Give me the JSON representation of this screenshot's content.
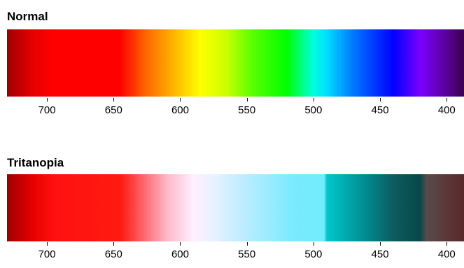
{
  "chart_data": [
    {
      "type": "spectrum-strip",
      "title": "Normal",
      "xlim": [
        730,
        387
      ],
      "ticks": [
        700,
        650,
        600,
        550,
        500,
        450,
        400
      ],
      "color_stops": [
        {
          "wavelength": 730,
          "color": "#a00000"
        },
        {
          "wavelength": 710,
          "color": "#e80000"
        },
        {
          "wavelength": 695,
          "color": "#ff0000"
        },
        {
          "wavelength": 645,
          "color": "#ff0000"
        },
        {
          "wavelength": 625,
          "color": "#ff6a00"
        },
        {
          "wavelength": 600,
          "color": "#ffc800"
        },
        {
          "wavelength": 585,
          "color": "#ffff00"
        },
        {
          "wavelength": 565,
          "color": "#c8ff00"
        },
        {
          "wavelength": 545,
          "color": "#55ff00"
        },
        {
          "wavelength": 520,
          "color": "#00ff00"
        },
        {
          "wavelength": 500,
          "color": "#00ffe0"
        },
        {
          "wavelength": 490,
          "color": "#00ddff"
        },
        {
          "wavelength": 470,
          "color": "#0077ff"
        },
        {
          "wavelength": 440,
          "color": "#0000ff"
        },
        {
          "wavelength": 420,
          "color": "#7a00ff"
        },
        {
          "wavelength": 400,
          "color": "#5a0099"
        },
        {
          "wavelength": 387,
          "color": "#3c004a"
        }
      ]
    },
    {
      "type": "spectrum-strip",
      "title": "Tritanopia",
      "xlim": [
        730,
        387
      ],
      "ticks": [
        700,
        650,
        600,
        550,
        500,
        450,
        400
      ],
      "color_stops": [
        {
          "wavelength": 730,
          "color": "#a00000"
        },
        {
          "wavelength": 710,
          "color": "#e80000"
        },
        {
          "wavelength": 695,
          "color": "#ff1010"
        },
        {
          "wavelength": 645,
          "color": "#ff1a10"
        },
        {
          "wavelength": 630,
          "color": "#ff5a60"
        },
        {
          "wavelength": 610,
          "color": "#ffb8c8"
        },
        {
          "wavelength": 590,
          "color": "#fff0ff"
        },
        {
          "wavelength": 575,
          "color": "#e6f2ff"
        },
        {
          "wavelength": 550,
          "color": "#b8ecff"
        },
        {
          "wavelength": 515,
          "color": "#7aeaff"
        },
        {
          "wavelength": 492,
          "color": "#72ecfc"
        },
        {
          "wavelength": 490,
          "color": "#00c8cc"
        },
        {
          "wavelength": 460,
          "color": "#008a8e"
        },
        {
          "wavelength": 440,
          "color": "#0c5c60"
        },
        {
          "wavelength": 420,
          "color": "#084848"
        },
        {
          "wavelength": 415,
          "color": "#5a4a4a"
        },
        {
          "wavelength": 387,
          "color": "#5a2828"
        }
      ]
    }
  ]
}
